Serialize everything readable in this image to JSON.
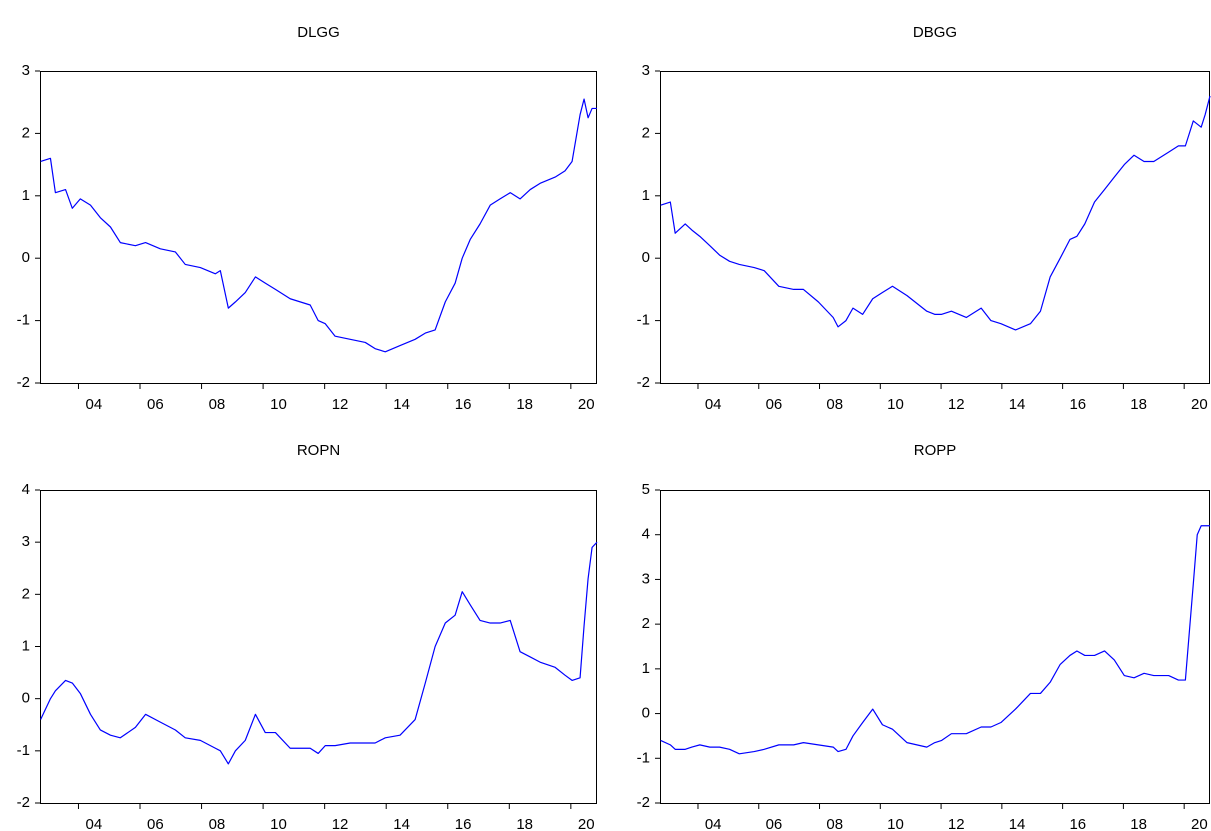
{
  "chart_data": [
    {
      "type": "line",
      "title": "DLGG",
      "color": "#0000ff",
      "x": [
        2002.77,
        2003.09,
        2003.25,
        2003.58,
        2003.8,
        2004.06,
        2004.39,
        2004.71,
        2005.04,
        2005.36,
        2005.85,
        2006.18,
        2006.66,
        2007.15,
        2007.47,
        2007.96,
        2008.45,
        2008.61,
        2008.87,
        2009.1,
        2009.42,
        2009.75,
        2010.07,
        2010.4,
        2010.88,
        2011.53,
        2011.79,
        2012.02,
        2012.34,
        2012.83,
        2013.32,
        2013.64,
        2013.97,
        2014.45,
        2014.94,
        2015.27,
        2015.59,
        2015.92,
        2016.24,
        2016.47,
        2016.73,
        2017.05,
        2017.38,
        2017.7,
        2018.03,
        2018.35,
        2018.68,
        2019.0,
        2019.49,
        2019.81,
        2020.04,
        2020.3,
        2020.43,
        2020.56,
        2020.69,
        2020.85
      ],
      "values": [
        1.55,
        1.6,
        1.05,
        1.1,
        0.8,
        0.95,
        0.85,
        0.65,
        0.5,
        0.25,
        0.2,
        0.25,
        0.15,
        0.1,
        -0.1,
        -0.15,
        -0.25,
        -0.2,
        -0.8,
        -0.7,
        -0.55,
        -0.3,
        -0.4,
        -0.5,
        -0.65,
        -0.75,
        -1.0,
        -1.05,
        -1.25,
        -1.3,
        -1.35,
        -1.45,
        -1.5,
        -1.4,
        -1.3,
        -1.2,
        -1.15,
        -0.7,
        -0.4,
        0.0,
        0.3,
        0.55,
        0.85,
        0.95,
        1.05,
        0.95,
        1.1,
        1.2,
        1.3,
        1.4,
        1.55,
        2.3,
        2.55,
        2.25,
        2.4,
        2.4
      ],
      "xlim": [
        2002.75,
        2020.85
      ],
      "xticks": [
        {
          "value": 2004,
          "label": "04"
        },
        {
          "value": 2006,
          "label": "06"
        },
        {
          "value": 2008,
          "label": "08"
        },
        {
          "value": 2010,
          "label": "10"
        },
        {
          "value": 2012,
          "label": "12"
        },
        {
          "value": 2014,
          "label": "14"
        },
        {
          "value": 2016,
          "label": "16"
        },
        {
          "value": 2018,
          "label": "18"
        },
        {
          "value": 2020,
          "label": "20"
        }
      ],
      "ylim": [
        -2,
        3
      ],
      "yticks": [
        -2,
        -1,
        0,
        1,
        2,
        3
      ]
    },
    {
      "type": "line",
      "title": "DBGG",
      "color": "#0000ff",
      "x": [
        2002.77,
        2003.09,
        2003.25,
        2003.58,
        2003.8,
        2004.06,
        2004.39,
        2004.71,
        2005.04,
        2005.36,
        2005.85,
        2006.18,
        2006.66,
        2007.15,
        2007.47,
        2007.96,
        2008.45,
        2008.61,
        2008.87,
        2009.1,
        2009.42,
        2009.75,
        2010.07,
        2010.4,
        2010.88,
        2011.53,
        2011.79,
        2012.02,
        2012.34,
        2012.83,
        2013.32,
        2013.64,
        2013.97,
        2014.45,
        2014.94,
        2015.27,
        2015.59,
        2015.92,
        2016.24,
        2016.47,
        2016.73,
        2017.05,
        2017.38,
        2017.7,
        2018.03,
        2018.35,
        2018.68,
        2019.0,
        2019.49,
        2019.81,
        2020.04,
        2020.3,
        2020.43,
        2020.56,
        2020.69,
        2020.85
      ],
      "values": [
        0.85,
        0.9,
        0.4,
        0.55,
        0.45,
        0.35,
        0.2,
        0.05,
        -0.05,
        -0.1,
        -0.15,
        -0.2,
        -0.45,
        -0.5,
        -0.5,
        -0.7,
        -0.95,
        -1.1,
        -1.0,
        -0.8,
        -0.9,
        -0.65,
        -0.55,
        -0.45,
        -0.6,
        -0.85,
        -0.9,
        -0.9,
        -0.85,
        -0.95,
        -0.8,
        -1.0,
        -1.05,
        -1.15,
        -1.05,
        -0.85,
        -0.3,
        0.0,
        0.3,
        0.35,
        0.55,
        0.9,
        1.1,
        1.3,
        1.5,
        1.65,
        1.55,
        1.55,
        1.7,
        1.8,
        1.8,
        2.2,
        2.15,
        2.1,
        2.3,
        2.6
      ],
      "xlim": [
        2002.75,
        2020.85
      ],
      "xticks": [
        {
          "value": 2004,
          "label": "04"
        },
        {
          "value": 2006,
          "label": "06"
        },
        {
          "value": 2008,
          "label": "08"
        },
        {
          "value": 2010,
          "label": "10"
        },
        {
          "value": 2012,
          "label": "12"
        },
        {
          "value": 2014,
          "label": "14"
        },
        {
          "value": 2016,
          "label": "16"
        },
        {
          "value": 2018,
          "label": "18"
        },
        {
          "value": 2020,
          "label": "20"
        }
      ],
      "ylim": [
        -2,
        3
      ],
      "yticks": [
        -2,
        -1,
        0,
        1,
        2,
        3
      ]
    },
    {
      "type": "line",
      "title": "ROPN",
      "color": "#0000ff",
      "x": [
        2002.77,
        2003.09,
        2003.25,
        2003.58,
        2003.8,
        2004.06,
        2004.39,
        2004.71,
        2005.04,
        2005.36,
        2005.85,
        2006.18,
        2006.66,
        2007.15,
        2007.47,
        2007.96,
        2008.45,
        2008.61,
        2008.87,
        2009.1,
        2009.42,
        2009.75,
        2010.07,
        2010.4,
        2010.88,
        2011.53,
        2011.79,
        2012.02,
        2012.34,
        2012.83,
        2013.32,
        2013.64,
        2013.97,
        2014.45,
        2014.94,
        2015.27,
        2015.59,
        2015.92,
        2016.24,
        2016.47,
        2016.73,
        2017.05,
        2017.38,
        2017.7,
        2018.03,
        2018.35,
        2018.68,
        2019.0,
        2019.49,
        2019.81,
        2020.04,
        2020.3,
        2020.43,
        2020.56,
        2020.69,
        2020.85
      ],
      "values": [
        -0.4,
        0.0,
        0.15,
        0.35,
        0.3,
        0.1,
        -0.3,
        -0.6,
        -0.7,
        -0.75,
        -0.55,
        -0.3,
        -0.45,
        -0.6,
        -0.75,
        -0.8,
        -0.95,
        -1.0,
        -1.25,
        -1.0,
        -0.8,
        -0.3,
        -0.65,
        -0.65,
        -0.95,
        -0.95,
        -1.05,
        -0.9,
        -0.9,
        -0.85,
        -0.85,
        -0.85,
        -0.75,
        -0.7,
        -0.4,
        0.3,
        1.0,
        1.45,
        1.6,
        2.05,
        1.8,
        1.5,
        1.45,
        1.45,
        1.5,
        0.9,
        0.8,
        0.7,
        0.6,
        0.45,
        0.35,
        0.4,
        1.4,
        2.3,
        2.9,
        3.0
      ],
      "xlim": [
        2002.75,
        2020.85
      ],
      "xticks": [
        {
          "value": 2004,
          "label": "04"
        },
        {
          "value": 2006,
          "label": "06"
        },
        {
          "value": 2008,
          "label": "08"
        },
        {
          "value": 2010,
          "label": "10"
        },
        {
          "value": 2012,
          "label": "12"
        },
        {
          "value": 2014,
          "label": "14"
        },
        {
          "value": 2016,
          "label": "16"
        },
        {
          "value": 2018,
          "label": "18"
        },
        {
          "value": 2020,
          "label": "20"
        }
      ],
      "ylim": [
        -2,
        4
      ],
      "yticks": [
        -2,
        -1,
        0,
        1,
        2,
        3,
        4
      ]
    },
    {
      "type": "line",
      "title": "ROPP",
      "color": "#0000ff",
      "x": [
        2002.77,
        2003.09,
        2003.25,
        2003.58,
        2003.8,
        2004.06,
        2004.39,
        2004.71,
        2005.04,
        2005.36,
        2005.85,
        2006.18,
        2006.66,
        2007.15,
        2007.47,
        2007.96,
        2008.45,
        2008.61,
        2008.87,
        2009.1,
        2009.42,
        2009.75,
        2010.07,
        2010.4,
        2010.88,
        2011.53,
        2011.79,
        2012.02,
        2012.34,
        2012.83,
        2013.32,
        2013.64,
        2013.97,
        2014.45,
        2014.94,
        2015.27,
        2015.59,
        2015.92,
        2016.24,
        2016.47,
        2016.73,
        2017.05,
        2017.38,
        2017.7,
        2018.03,
        2018.35,
        2018.68,
        2019.0,
        2019.49,
        2019.81,
        2020.04,
        2020.3,
        2020.43,
        2020.56,
        2020.69,
        2020.85
      ],
      "values": [
        -0.6,
        -0.7,
        -0.8,
        -0.8,
        -0.75,
        -0.7,
        -0.75,
        -0.75,
        -0.8,
        -0.9,
        -0.85,
        -0.8,
        -0.7,
        -0.7,
        -0.65,
        -0.7,
        -0.75,
        -0.85,
        -0.8,
        -0.5,
        -0.2,
        0.1,
        -0.25,
        -0.35,
        -0.65,
        -0.75,
        -0.65,
        -0.6,
        -0.45,
        -0.45,
        -0.3,
        -0.3,
        -0.2,
        0.1,
        0.45,
        0.45,
        0.7,
        1.1,
        1.3,
        1.4,
        1.3,
        1.3,
        1.4,
        1.2,
        0.85,
        0.8,
        0.9,
        0.85,
        0.85,
        0.75,
        0.75,
        2.9,
        4.0,
        4.2,
        4.2,
        4.2
      ],
      "xlim": [
        2002.75,
        2020.85
      ],
      "xticks": [
        {
          "value": 2004,
          "label": "04"
        },
        {
          "value": 2006,
          "label": "06"
        },
        {
          "value": 2008,
          "label": "08"
        },
        {
          "value": 2010,
          "label": "10"
        },
        {
          "value": 2012,
          "label": "12"
        },
        {
          "value": 2014,
          "label": "14"
        },
        {
          "value": 2016,
          "label": "16"
        },
        {
          "value": 2018,
          "label": "18"
        },
        {
          "value": 2020,
          "label": "20"
        }
      ],
      "ylim": [
        -2,
        5
      ],
      "yticks": [
        -2,
        -1,
        0,
        1,
        2,
        3,
        4,
        5
      ]
    }
  ]
}
